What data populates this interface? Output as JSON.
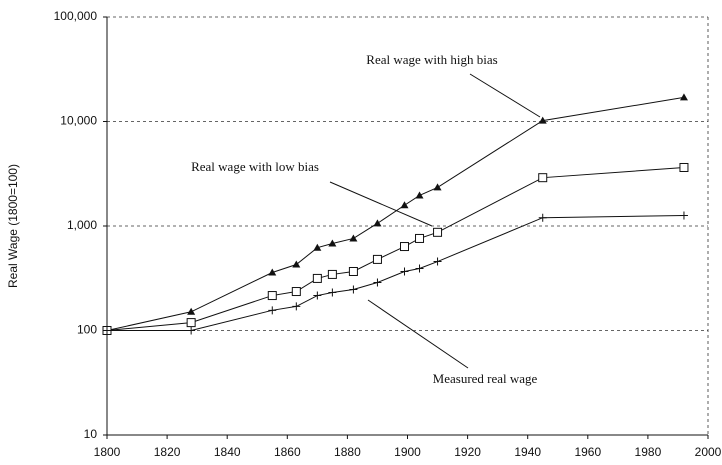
{
  "chart_data": {
    "type": "line",
    "y_label": "Real Wage (1800=100)",
    "log_y": true,
    "grid": true,
    "x": [
      1800,
      1828,
      1855,
      1863,
      1870,
      1875,
      1882,
      1890,
      1899,
      1904,
      1910,
      1945,
      1992
    ],
    "series": [
      {
        "name": "Real wage with high bias",
        "color": "#111111",
        "marker": "triangle",
        "values": [
          100,
          151,
          359,
          428,
          620,
          680,
          760,
          1060,
          1580,
          1960,
          2340,
          10200,
          17000
        ]
      },
      {
        "name": "Real wage with low bias",
        "color": "#111111",
        "marker": "square",
        "values": [
          100,
          119,
          216,
          236,
          315,
          344,
          367,
          479,
          636,
          760,
          870,
          2900,
          3630
        ]
      },
      {
        "name": "Measured real wage",
        "color": "#111111",
        "marker": "plus",
        "values": [
          100,
          100,
          156,
          170,
          216,
          231,
          247,
          288,
          367,
          392,
          457,
          1200,
          1260
        ]
      }
    ],
    "xlim": [
      1800,
      2000
    ],
    "xticks": [
      1800,
      1820,
      1840,
      1860,
      1880,
      1900,
      1920,
      1940,
      1960,
      1980,
      2000
    ],
    "ylim": [
      10,
      100000
    ],
    "yticks": [
      10,
      100,
      {
        "value": 1000,
        "label": "1,000"
      },
      {
        "value": 10000,
        "label": "10,000"
      },
      {
        "value": 100000,
        "label": "100,000"
      }
    ]
  }
}
